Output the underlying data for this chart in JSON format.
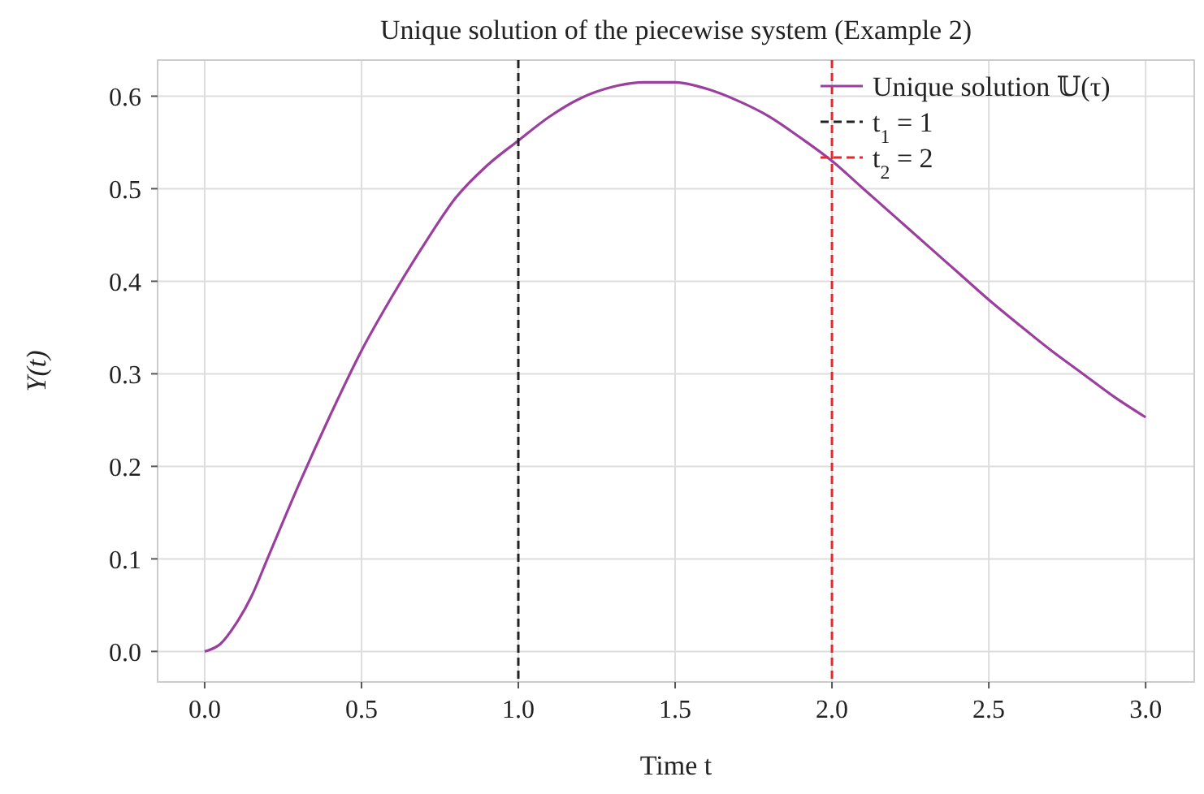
{
  "chart_data": {
    "type": "line",
    "title": "Unique solution of the piecewise system (Example 2)",
    "xlabel": "Time t",
    "ylabel": "Y(t)",
    "x": [
      0,
      0.05,
      0.1,
      0.15,
      0.2,
      0.3,
      0.4,
      0.5,
      0.6,
      0.7,
      0.8,
      0.9,
      1.0,
      1.1,
      1.2,
      1.3,
      1.4,
      1.5,
      1.6,
      1.7,
      1.8,
      1.9,
      2.0,
      2.1,
      2.2,
      2.3,
      2.4,
      2.5,
      2.6,
      2.7,
      2.8,
      2.9,
      3.0
    ],
    "series": [
      {
        "name": "Unique solution 𝕌(τ)",
        "color": "#9b3f9e",
        "values": [
          0,
          0.008,
          0.03,
          0.06,
          0.1,
          0.18,
          0.255,
          0.325,
          0.385,
          0.44,
          0.49,
          0.525,
          0.552,
          0.578,
          0.598,
          0.61,
          0.615,
          0.615,
          0.608,
          0.595,
          0.578,
          0.555,
          0.53,
          0.5,
          0.47,
          0.44,
          0.41,
          0.38,
          0.352,
          0.325,
          0.3,
          0.275,
          0.253
        ]
      }
    ],
    "ref_lines": [
      {
        "axis": "x",
        "value": 1,
        "label": "t$_{1}$ = 1",
        "color": "#222222",
        "line_style": "dashed"
      },
      {
        "axis": "x",
        "value": 2,
        "label": "t$_{2}$ = 2",
        "color": "#e8272a",
        "line_style": "dashed"
      }
    ],
    "xlim": [
      -0.15,
      3.155
    ],
    "ylim": [
      -0.033,
      0.639
    ],
    "xticks": [
      {
        "value": 0,
        "label": "0.0"
      },
      0.5,
      {
        "value": 1,
        "label": "1.0"
      },
      1.5,
      {
        "value": 2,
        "label": "2.0"
      },
      2.5,
      {
        "value": 3,
        "label": "3.0"
      }
    ],
    "yticks": [
      {
        "value": 0,
        "label": "0.0"
      },
      0.1,
      0.2,
      0.3,
      0.4,
      0.5,
      0.6
    ],
    "grid": true,
    "legend": "top right",
    "line_style": "solid",
    "marker": "none"
  }
}
